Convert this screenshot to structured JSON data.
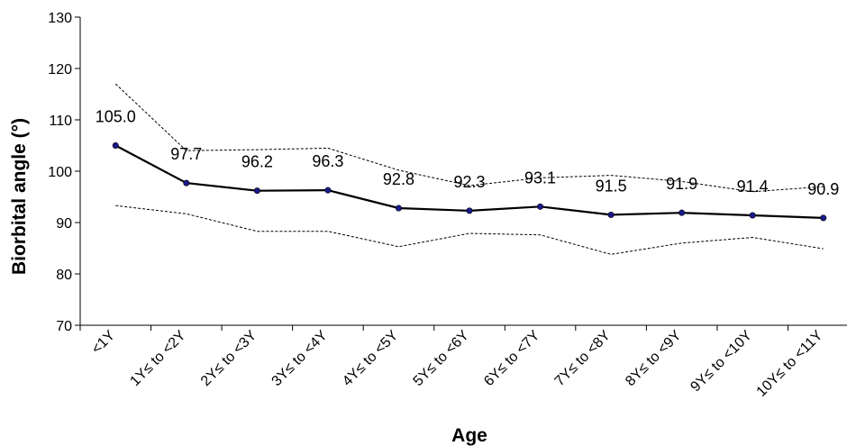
{
  "chart_data": {
    "type": "line",
    "title": "",
    "xlabel": "Age",
    "ylabel": "Biorbital angle (°)",
    "ylim": [
      70,
      130
    ],
    "yticks": [
      70,
      80,
      90,
      100,
      110,
      120,
      130
    ],
    "grid": false,
    "legend": "none",
    "categories": [
      "<1Y",
      "1Y≤ to <2Y",
      "2Y≤ to <3Y",
      "3Y≤ to <4Y",
      "4Y≤ to <5Y",
      "5Y≤ to <6Y",
      "6Y≤ to <7Y",
      "7Y≤ to <8Y",
      "8Y≤ to <9Y",
      "9Y≤ to <10Y",
      "10Y≤ to <11Y"
    ],
    "series": [
      {
        "role": "mean",
        "values": [
          105.0,
          97.7,
          96.2,
          96.3,
          92.8,
          92.3,
          93.1,
          91.5,
          91.9,
          91.4,
          90.9
        ],
        "labels": [
          "105.0",
          "97.7",
          "96.2",
          "96.3",
          "92.8",
          "92.3",
          "93.1",
          "91.5",
          "91.9",
          "91.4",
          "90.9"
        ],
        "style": "solid",
        "color": "#000000",
        "marker_color": "#1a1a8c"
      },
      {
        "role": "upper",
        "values": [
          117.0,
          104.0,
          104.2,
          104.5,
          100.2,
          97.2,
          98.7,
          99.2,
          98.0,
          96.0,
          97.0
        ],
        "style": "dotted",
        "color": "#000000"
      },
      {
        "role": "lower",
        "values": [
          93.3,
          91.7,
          88.3,
          88.3,
          85.3,
          87.9,
          87.6,
          83.8,
          86.0,
          87.1,
          84.9
        ]
      }
    ]
  }
}
